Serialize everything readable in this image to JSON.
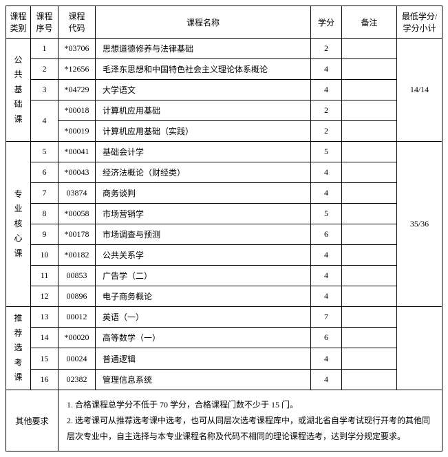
{
  "headers": {
    "category": "课程\n类别",
    "seq": "课程\n序号",
    "code": "课程\n代码",
    "name": "课程名称",
    "credit": "学分",
    "remark": "备注",
    "subtotal": "最低学分/\n学分小计"
  },
  "categories": {
    "public": "公共基础课",
    "core": "专业核心课",
    "elective": "推荐选考课"
  },
  "subtotals": {
    "public": "14/14",
    "core": "35/36",
    "elective": ""
  },
  "rows": [
    {
      "seq": "1",
      "code": "*03706",
      "name": "思想道德修养与法律基础",
      "credit": "2",
      "remark": ""
    },
    {
      "seq": "2",
      "code": "*12656",
      "name": "毛泽东思想和中国特色社会主义理论体系概论",
      "credit": "4",
      "remark": ""
    },
    {
      "seq": "3",
      "code": "*04729",
      "name": "大学语文",
      "credit": "4",
      "remark": ""
    },
    {
      "seq": "4",
      "code": "*00018",
      "name": "计算机应用基础",
      "credit": "2",
      "remark": ""
    },
    {
      "seq": "",
      "code": "*00019",
      "name": "计算机应用基础（实践）",
      "credit": "2",
      "remark": ""
    },
    {
      "seq": "5",
      "code": "*00041",
      "name": "基础会计学",
      "credit": "5",
      "remark": ""
    },
    {
      "seq": "6",
      "code": "*00043",
      "name": "经济法概论（财经类）",
      "credit": "4",
      "remark": ""
    },
    {
      "seq": "7",
      "code": "03874",
      "name": "商务谈判",
      "credit": "4",
      "remark": ""
    },
    {
      "seq": "8",
      "code": "*00058",
      "name": "市场营销学",
      "credit": "5",
      "remark": ""
    },
    {
      "seq": "9",
      "code": "*00178",
      "name": "市场调查与预测",
      "credit": "6",
      "remark": ""
    },
    {
      "seq": "10",
      "code": "*00182",
      "name": "公共关系学",
      "credit": "4",
      "remark": ""
    },
    {
      "seq": "11",
      "code": "00853",
      "name": "广告学（二）",
      "credit": "4",
      "remark": ""
    },
    {
      "seq": "12",
      "code": "00896",
      "name": "电子商务概论",
      "credit": "4",
      "remark": ""
    },
    {
      "seq": "13",
      "code": "00012",
      "name": "英语（一）",
      "credit": "7",
      "remark": ""
    },
    {
      "seq": "14",
      "code": "*00020",
      "name": "高等数学（一）",
      "credit": "6",
      "remark": ""
    },
    {
      "seq": "15",
      "code": "00024",
      "name": "普通逻辑",
      "credit": "4",
      "remark": ""
    },
    {
      "seq": "16",
      "code": "02382",
      "name": "管理信息系统",
      "credit": "4",
      "remark": ""
    }
  ],
  "other": {
    "label": "其他要求",
    "line1": "1. 合格课程总学分不低于 70 学分，合格课程门数不少于 15 门。",
    "line2": "2. 选考课可从推荐选考课中选考，也可从同层次选考课程库中，或湖北省自学考试现行开考的其他同层次专业中，自主选择与本专业课程名称及代码不相同的理论课程选考，达到学分规定要求。"
  }
}
